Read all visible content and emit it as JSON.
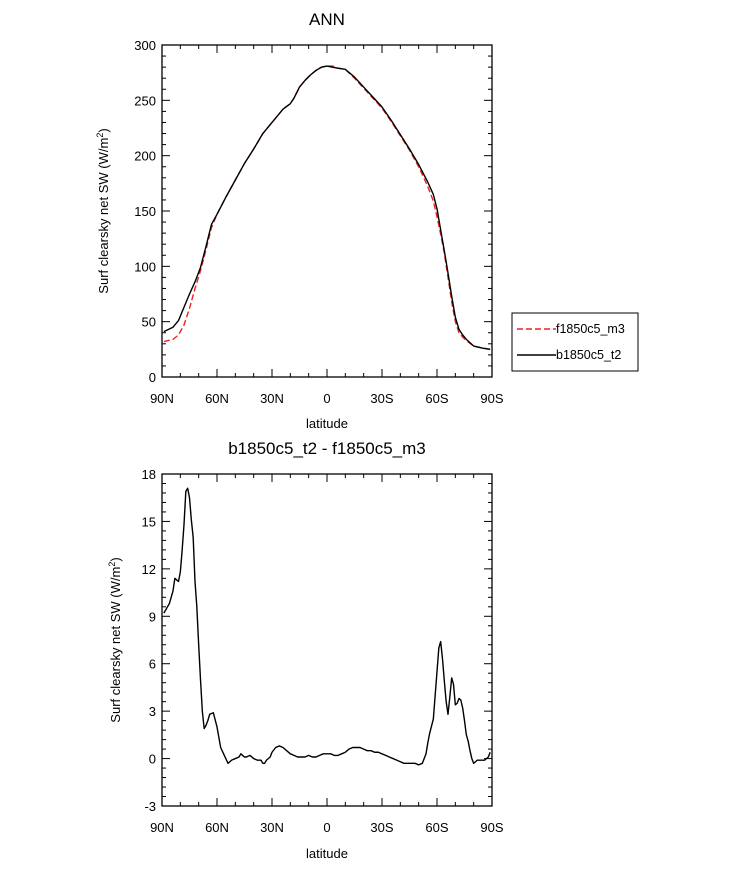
{
  "chart_data": [
    {
      "type": "line",
      "title": "ANN",
      "xlabel": "latitude",
      "ylabel_main": "Surf clearsky net SW (W/m",
      "ylabel_sup": "2",
      "ylabel_close": ")",
      "xlim": [
        90,
        -90
      ],
      "ylim": [
        0,
        300
      ],
      "xticks": [
        {
          "value": 90,
          "label": "90N"
        },
        {
          "value": 60,
          "label": "60N"
        },
        {
          "value": 30,
          "label": "30N"
        },
        {
          "value": 0,
          "label": "0"
        },
        {
          "value": -30,
          "label": "30S"
        },
        {
          "value": -60,
          "label": "60S"
        },
        {
          "value": -90,
          "label": "90S"
        }
      ],
      "yticks": [
        {
          "value": 0,
          "label": "0"
        },
        {
          "value": 50,
          "label": "50"
        },
        {
          "value": 100,
          "label": "100"
        },
        {
          "value": 150,
          "label": "150"
        },
        {
          "value": 200,
          "label": "200"
        },
        {
          "value": 250,
          "label": "250"
        },
        {
          "value": 300,
          "label": "300"
        }
      ],
      "legend_position": "right",
      "series": [
        {
          "name": "f1850c5_m3",
          "color": "#e8231f",
          "dash": "dashed",
          "x": [
            89,
            84,
            81,
            78,
            75,
            72,
            69,
            66,
            63,
            60,
            55,
            50,
            45,
            40,
            35,
            30,
            27,
            24,
            20,
            18,
            15,
            12,
            9,
            6,
            3,
            0,
            -3,
            -6,
            -10,
            -15,
            -20,
            -25,
            -30,
            -35,
            -40,
            -45,
            -50,
            -55,
            -58,
            -60,
            -62,
            -64,
            -66,
            -68,
            -70,
            -72,
            -74,
            -76,
            -80,
            -85,
            -89
          ],
          "y": [
            32,
            34,
            38,
            47,
            62,
            80,
            96,
            115,
            135,
            147,
            163,
            178,
            193,
            206,
            220,
            230,
            236,
            242,
            247,
            252,
            262,
            268,
            273,
            277,
            280,
            281,
            281,
            279,
            278,
            270,
            261,
            252,
            243,
            231,
            218,
            205,
            190,
            172,
            159,
            145,
            129,
            112,
            90,
            68,
            50,
            40,
            36,
            33,
            28,
            26,
            25
          ]
        },
        {
          "name": "b1850c5_t2",
          "color": "#000000",
          "dash": "solid",
          "x": [
            89,
            84,
            81,
            78,
            75,
            72,
            69,
            66,
            63,
            60,
            55,
            50,
            45,
            40,
            35,
            30,
            27,
            24,
            20,
            18,
            15,
            12,
            9,
            6,
            3,
            0,
            -3,
            -6,
            -10,
            -15,
            -20,
            -25,
            -30,
            -35,
            -40,
            -45,
            -50,
            -55,
            -58,
            -60,
            -62,
            -64,
            -66,
            -68,
            -70,
            -72,
            -74,
            -76,
            -80,
            -85,
            -89
          ],
          "y": [
            41,
            45,
            51,
            63,
            75,
            86,
            99,
            118,
            138,
            147,
            163,
            178,
            193,
            206,
            220,
            230,
            236,
            242,
            247,
            252,
            262,
            268,
            273,
            277,
            280,
            281,
            280,
            279,
            278,
            271,
            262,
            253,
            244,
            232,
            219,
            206,
            192,
            176,
            165,
            152,
            133,
            114,
            94,
            73,
            54,
            43,
            38,
            34,
            28,
            26,
            25
          ]
        }
      ]
    },
    {
      "type": "line",
      "title": "b1850c5_t2 - f1850c5_m3",
      "xlabel": "latitude",
      "ylabel_main": "Surf clearsky net SW (W/m",
      "ylabel_sup": "2",
      "ylabel_close": ")",
      "xlim": [
        90,
        -90
      ],
      "ylim": [
        -3,
        18
      ],
      "xticks": [
        {
          "value": 90,
          "label": "90N"
        },
        {
          "value": 60,
          "label": "60N"
        },
        {
          "value": 30,
          "label": "30N"
        },
        {
          "value": 0,
          "label": "0"
        },
        {
          "value": -30,
          "label": "30S"
        },
        {
          "value": -60,
          "label": "60S"
        },
        {
          "value": -90,
          "label": "90S"
        }
      ],
      "yticks": [
        {
          "value": -3,
          "label": "-3"
        },
        {
          "value": 0,
          "label": "0"
        },
        {
          "value": 3,
          "label": "3"
        },
        {
          "value": 6,
          "label": "6"
        },
        {
          "value": 9,
          "label": "9"
        },
        {
          "value": 12,
          "label": "12"
        },
        {
          "value": 15,
          "label": "15"
        },
        {
          "value": 18,
          "label": "18"
        }
      ],
      "series": [
        {
          "name": "b1850c5_t2 - f1850c5_m3",
          "color": "#000000",
          "dash": "solid",
          "x": [
            89,
            87,
            86,
            84,
            83,
            82,
            81,
            80,
            79,
            78,
            77,
            76,
            75,
            74,
            73,
            72,
            71,
            70,
            69,
            68,
            67,
            66,
            65,
            64,
            62,
            60,
            58,
            56,
            54,
            52,
            50,
            48,
            47,
            46,
            45,
            44,
            42,
            40,
            38,
            36,
            35,
            34,
            33,
            31,
            30,
            28,
            26,
            24,
            22,
            20,
            18,
            16,
            14,
            12,
            10,
            8,
            6,
            4,
            2,
            0,
            -2,
            -4,
            -6,
            -8,
            -10,
            -12,
            -14,
            -16,
            -18,
            -20,
            -22,
            -24,
            -26,
            -28,
            -30,
            -32,
            -34,
            -36,
            -38,
            -40,
            -42,
            -44,
            -46,
            -48,
            -50,
            -52,
            -54,
            -55,
            -56,
            -58,
            -59,
            -60,
            -61,
            -62,
            -63,
            -64,
            -65,
            -66,
            -67,
            -68,
            -69,
            -70,
            -71,
            -72,
            -73,
            -74,
            -75,
            -76,
            -77,
            -78,
            -79,
            -80,
            -81,
            -82,
            -84,
            -86,
            -88,
            -89
          ],
          "y": [
            9.2,
            9.6,
            9.8,
            10.6,
            11.4,
            11.3,
            11.2,
            11.8,
            13.2,
            14.8,
            16.9,
            17.1,
            16.5,
            15.1,
            14.0,
            11.2,
            9.6,
            7.2,
            5.0,
            3.0,
            1.9,
            2.1,
            2.4,
            2.8,
            2.9,
            2.0,
            0.7,
            0.2,
            -0.3,
            -0.1,
            0.0,
            0.1,
            0.3,
            0.2,
            0.1,
            0.1,
            0.2,
            0.0,
            -0.1,
            -0.1,
            -0.3,
            -0.3,
            -0.1,
            0.1,
            0.4,
            0.7,
            0.8,
            0.7,
            0.5,
            0.3,
            0.2,
            0.1,
            0.1,
            0.1,
            0.2,
            0.1,
            0.1,
            0.2,
            0.3,
            0.3,
            0.3,
            0.2,
            0.2,
            0.3,
            0.4,
            0.6,
            0.7,
            0.7,
            0.7,
            0.6,
            0.5,
            0.5,
            0.4,
            0.4,
            0.3,
            0.2,
            0.1,
            0.0,
            -0.1,
            -0.2,
            -0.3,
            -0.3,
            -0.3,
            -0.3,
            -0.4,
            -0.3,
            0.3,
            1.0,
            1.6,
            2.5,
            4.0,
            5.5,
            7.0,
            7.4,
            6.3,
            4.9,
            3.6,
            2.8,
            3.9,
            5.1,
            4.7,
            3.4,
            3.5,
            3.8,
            3.7,
            3.2,
            2.4,
            1.5,
            1.1,
            0.5,
            0.0,
            -0.3,
            -0.2,
            -0.1,
            -0.1,
            -0.1,
            0.1,
            0.4
          ]
        }
      ]
    }
  ]
}
